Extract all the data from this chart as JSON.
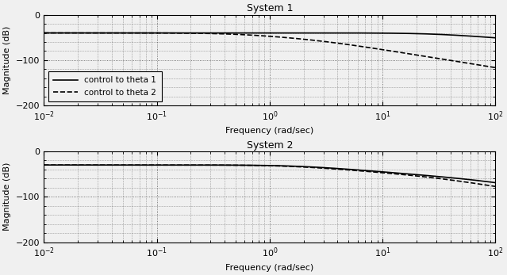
{
  "title1": "System 1",
  "title2": "System 2",
  "xlabel": "Frequency (rad/sec)",
  "ylabel": "Magnitude (dB)",
  "xlim": [
    0.01,
    100
  ],
  "ylim": [
    -200,
    0
  ],
  "yticks": [
    0,
    -100,
    -200
  ],
  "legend1": [
    "control to theta 1",
    "control to theta 2"
  ],
  "background_color": "#f0f0f0",
  "line_color": "#000000",
  "figsize": [
    6.39,
    3.47
  ],
  "dpi": 100,
  "sys1_theta1_dc": -40,
  "sys1_theta1_poles": [
    30.0
  ],
  "sys1_theta2_dc": -40,
  "sys1_theta2_poles": [
    0.5,
    3.0
  ],
  "sys2_theta1_dc": -30,
  "sys2_theta1_poles": [
    1.8,
    80.0
  ],
  "sys2_theta2_dc": -30,
  "sys2_theta2_poles": [
    1.5,
    30.0
  ]
}
